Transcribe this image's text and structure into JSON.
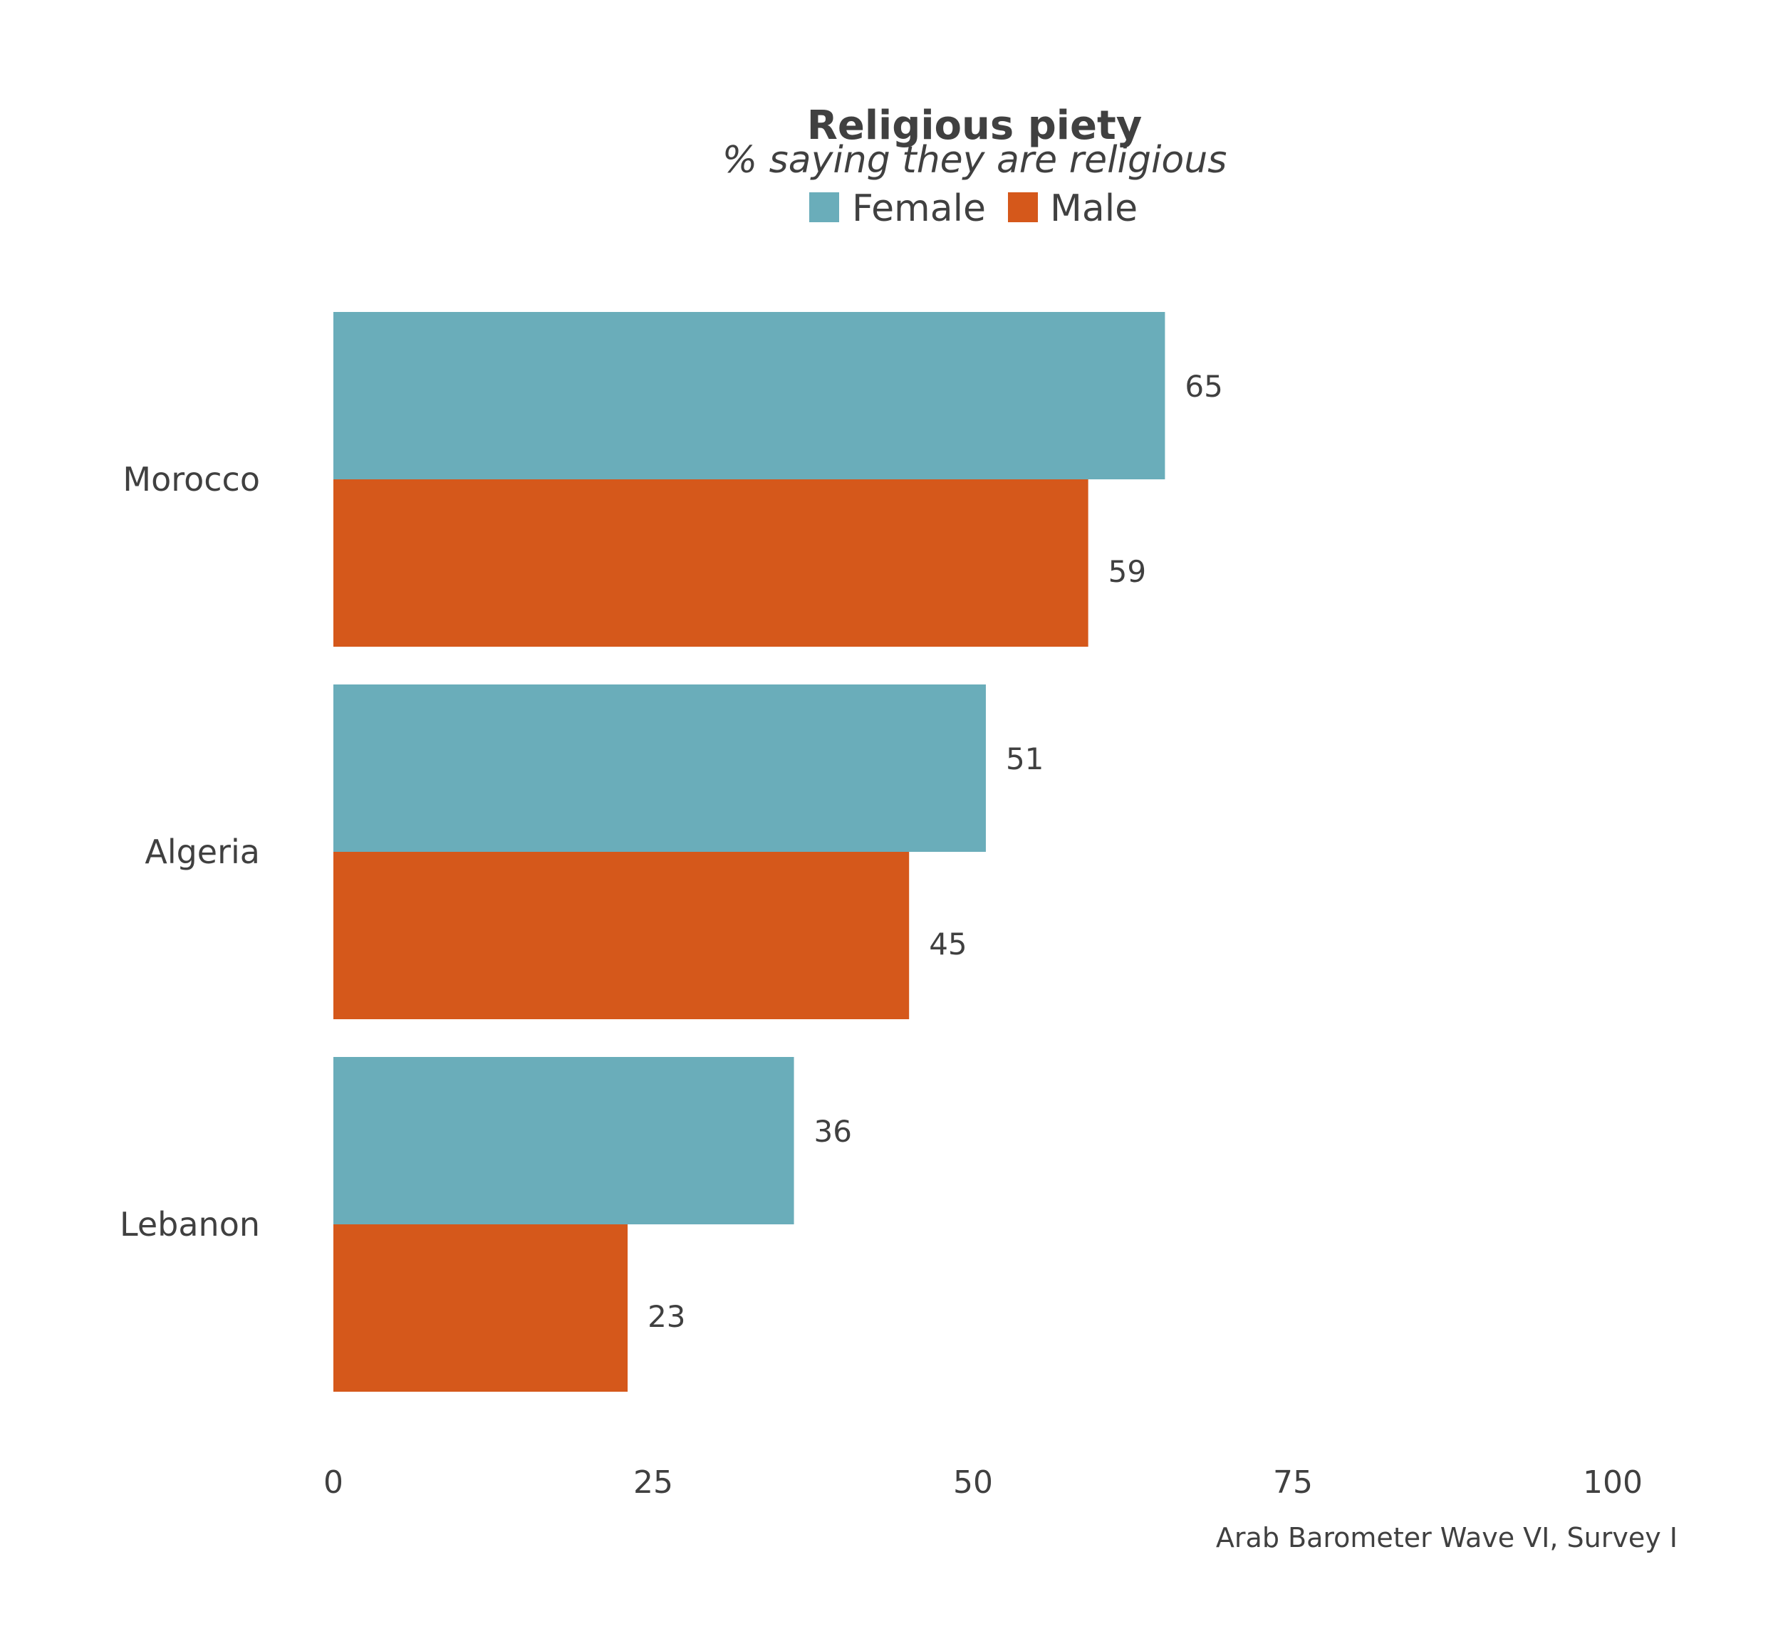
{
  "chart_data": {
    "type": "bar",
    "orientation": "horizontal",
    "title": "Religious piety",
    "subtitle": "% saying they are religious",
    "caption": "Arab Barometer Wave VI, Survey I",
    "categories": [
      "Morocco",
      "Algeria",
      "Lebanon"
    ],
    "series": [
      {
        "name": "Female",
        "color": "#6aadba",
        "values": [
          65,
          51,
          36
        ]
      },
      {
        "name": "Male",
        "color": "#d5581b",
        "values": [
          59,
          45,
          23
        ]
      }
    ],
    "xlim": [
      0,
      100
    ],
    "xticks": [
      0,
      25,
      50,
      75,
      100
    ],
    "xtick_labels": [
      "0",
      "25",
      "50",
      "75",
      "100"
    ],
    "grid": false,
    "legend_position": "top"
  }
}
